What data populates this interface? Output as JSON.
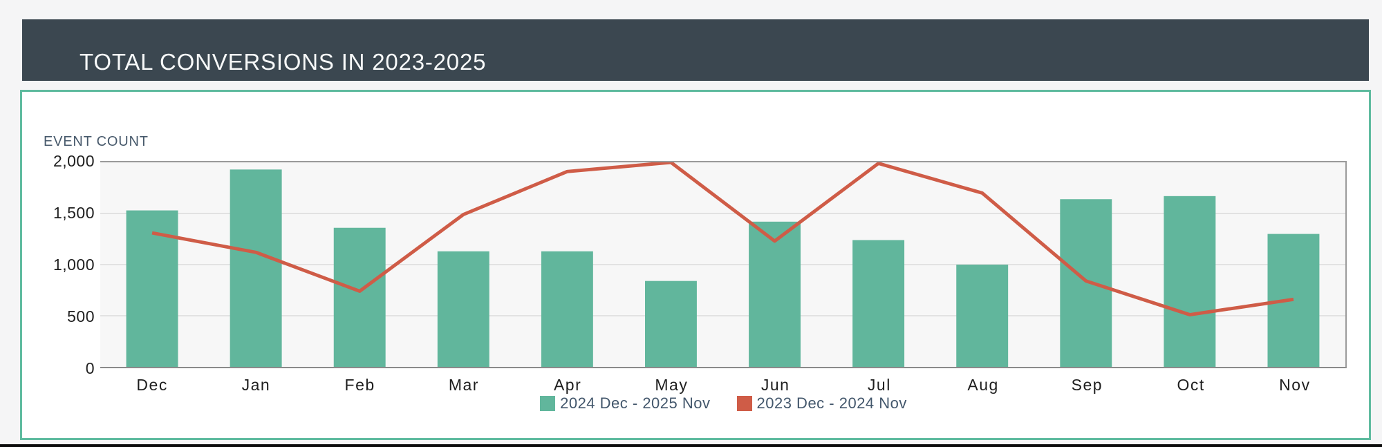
{
  "header": {
    "title": "TOTAL CONVERSIONS IN 2023-2025"
  },
  "axis_title": "EVENT COUNT",
  "colors": {
    "header_bg": "#3b4750",
    "card_border": "#5fbb9f",
    "bar_green": "#61b69c",
    "line_red": "#cf5c47",
    "plot_bg": "#f7f7f7",
    "grid_line": "#dcdcdc",
    "legend_text": "#42566b"
  },
  "chart_data": {
    "type": "bar",
    "title": "TOTAL CONVERSIONS IN 2023-2025",
    "ylabel": "EVENT COUNT",
    "xlabel": "",
    "categories": [
      "Dec",
      "Jan",
      "Feb",
      "Mar",
      "Apr",
      "May",
      "Jun",
      "Jul",
      "Aug",
      "Sep",
      "Oct",
      "Nov"
    ],
    "series": [
      {
        "name": "2024 Dec - 2025 Nov",
        "type": "bar",
        "color": "#61b69c",
        "values": [
          1530,
          1930,
          1360,
          1130,
          1130,
          840,
          1420,
          1240,
          1000,
          1640,
          1670,
          1300
        ]
      },
      {
        "name": "2023 Dec - 2024 Nov",
        "type": "line",
        "color": "#cf5c47",
        "values": [
          1310,
          1120,
          740,
          1490,
          1910,
          2000,
          1230,
          1990,
          1700,
          840,
          510,
          660
        ]
      }
    ],
    "ylim": [
      0,
      2000
    ],
    "yticks": [
      0,
      500,
      1000,
      1500,
      2000
    ],
    "ytick_labels": [
      "0",
      "500",
      "1,000",
      "1,500",
      "2,000"
    ],
    "grid": true,
    "legend_position": "bottom"
  }
}
